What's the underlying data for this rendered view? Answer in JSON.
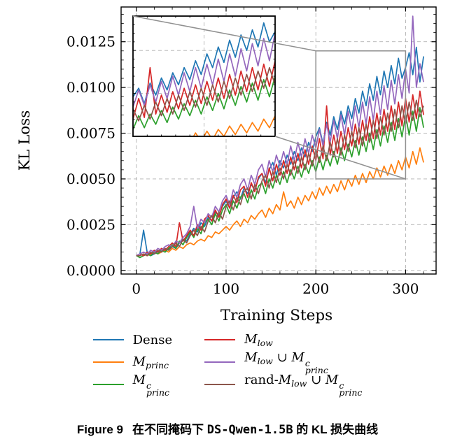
{
  "colors": {
    "background": "#ffffff",
    "axis": "#000000",
    "grid": "#b0b0b0",
    "zoom_indicator": "#909090"
  },
  "chart_data": {
    "type": "line",
    "title": "",
    "xlabel": "Training Steps",
    "ylabel": "KL Loss",
    "xlim": [
      -17,
      334
    ],
    "ylim": [
      -0.0002,
      0.0144
    ],
    "xticks": [
      0,
      100,
      200,
      300
    ],
    "xtick_labels": [
      "0",
      "100",
      "200",
      "300"
    ],
    "yticks": [
      0.0,
      0.0025,
      0.005,
      0.0075,
      0.01,
      0.0125
    ],
    "ytick_labels": [
      "0.0000",
      "0.0025",
      "0.0050",
      "0.0075",
      "0.0100",
      "0.0125"
    ],
    "x_minor_step": 20,
    "y_minor_step": 0.0005,
    "grid": true,
    "legend_position": "below, 2 columns",
    "y_scale": 0.0001,
    "x": [
      0,
      4,
      8,
      12,
      16,
      20,
      24,
      28,
      32,
      36,
      40,
      44,
      48,
      52,
      56,
      60,
      64,
      68,
      72,
      76,
      80,
      84,
      88,
      92,
      96,
      100,
      104,
      108,
      112,
      116,
      120,
      124,
      128,
      132,
      136,
      140,
      144,
      148,
      152,
      156,
      160,
      164,
      168,
      172,
      176,
      180,
      184,
      188,
      192,
      196,
      200,
      204,
      208,
      212,
      216,
      220,
      224,
      228,
      232,
      236,
      240,
      244,
      248,
      252,
      256,
      260,
      264,
      268,
      272,
      276,
      280,
      284,
      288,
      292,
      296,
      300,
      304,
      308,
      312,
      316,
      320
    ],
    "series": [
      {
        "name": "Dense",
        "color": "#1f77b4",
        "values_1e4": [
          8,
          9,
          22,
          10,
          8,
          9,
          10,
          11,
          10,
          12,
          13,
          12,
          15,
          17,
          16,
          20,
          23,
          21,
          26,
          24,
          29,
          27,
          32,
          30,
          35,
          38,
          34,
          40,
          43,
          39,
          45,
          42,
          47,
          44,
          50,
          53,
          48,
          55,
          59,
          52,
          60,
          56,
          63,
          58,
          65,
          60,
          67,
          62,
          70,
          65,
          73,
          78,
          69,
          81,
          74,
          84,
          77,
          87,
          80,
          90,
          83,
          94,
          86,
          98,
          90,
          102,
          93,
          106,
          96,
          109,
          100,
          112,
          102,
          116,
          105,
          111,
          119,
          107,
          122,
          103,
          117
        ]
      },
      {
        "name": "M_princ",
        "color": "#ff7f0e",
        "values_1e4": [
          8,
          8,
          9,
          8,
          9,
          10,
          9,
          10,
          11,
          10,
          12,
          11,
          13,
          12,
          14,
          15,
          14,
          16,
          17,
          16,
          19,
          18,
          21,
          20,
          22,
          24,
          22,
          25,
          27,
          24,
          28,
          26,
          30,
          28,
          31,
          33,
          29,
          34,
          31,
          36,
          33,
          43,
          35,
          38,
          34,
          40,
          36,
          41,
          38,
          43,
          39,
          45,
          41,
          46,
          42,
          47,
          43,
          49,
          44,
          50,
          46,
          52,
          47,
          53,
          48,
          54,
          50,
          56,
          51,
          57,
          52,
          58,
          53,
          60,
          55,
          62,
          56,
          65,
          58,
          67,
          59
        ]
      },
      {
        "name": "M^c_princ",
        "color": "#2ca02c",
        "values_1e4": [
          8,
          7,
          8,
          9,
          8,
          10,
          9,
          11,
          10,
          12,
          14,
          12,
          16,
          14,
          18,
          21,
          18,
          23,
          20,
          26,
          28,
          25,
          31,
          27,
          33,
          36,
          31,
          38,
          34,
          40,
          42,
          37,
          44,
          39,
          46,
          48,
          42,
          50,
          45,
          52,
          47,
          54,
          48,
          55,
          50,
          57,
          51,
          58,
          53,
          60,
          54,
          62,
          55,
          63,
          57,
          65,
          58,
          67,
          60,
          69,
          62,
          71,
          63,
          73,
          65,
          75,
          66,
          77,
          68,
          79,
          70,
          81,
          71,
          83,
          73,
          85,
          74,
          87,
          76,
          89,
          78
        ]
      },
      {
        "name": "M_low",
        "color": "#d62728",
        "values_1e4": [
          8,
          9,
          8,
          10,
          9,
          11,
          10,
          12,
          11,
          13,
          15,
          13,
          26,
          16,
          19,
          22,
          19,
          25,
          22,
          28,
          30,
          27,
          33,
          29,
          36,
          39,
          34,
          41,
          37,
          44,
          46,
          40,
          48,
          43,
          51,
          53,
          46,
          56,
          49,
          58,
          52,
          60,
          53,
          62,
          55,
          64,
          56,
          66,
          58,
          68,
          60,
          72,
          61,
          90,
          63,
          74,
          64,
          76,
          66,
          78,
          68,
          80,
          69,
          82,
          71,
          84,
          72,
          86,
          74,
          88,
          76,
          90,
          77,
          92,
          79,
          94,
          81,
          96,
          83,
          98,
          85
        ]
      },
      {
        "name": "M_low ∪ M^c_princ",
        "color": "#9467bd",
        "values_1e4": [
          8,
          9,
          10,
          9,
          11,
          10,
          12,
          11,
          13,
          14,
          13,
          16,
          15,
          18,
          20,
          24,
          35,
          23,
          28,
          26,
          31,
          29,
          35,
          32,
          38,
          41,
          36,
          44,
          40,
          47,
          50,
          44,
          52,
          47,
          55,
          58,
          51,
          60,
          54,
          63,
          57,
          65,
          58,
          68,
          60,
          70,
          62,
          72,
          64,
          74,
          67,
          77,
          68,
          80,
          70,
          82,
          72,
          85,
          74,
          87,
          76,
          90,
          78,
          92,
          80,
          95,
          82,
          98,
          85,
          101,
          88,
          104,
          91,
          107,
          94,
          110,
          97,
          139,
          100,
          113,
          103
        ]
      },
      {
        "name": "rand-M_low ∪ M^c_princ",
        "color": "#8c564b",
        "values_1e4": [
          8,
          8,
          9,
          8,
          10,
          9,
          11,
          10,
          12,
          11,
          13,
          15,
          13,
          17,
          15,
          19,
          22,
          19,
          24,
          21,
          27,
          30,
          26,
          32,
          28,
          35,
          38,
          33,
          40,
          36,
          43,
          45,
          39,
          47,
          42,
          49,
          52,
          45,
          54,
          48,
          56,
          50,
          58,
          52,
          60,
          53,
          62,
          55,
          64,
          57,
          66,
          59,
          68,
          60,
          70,
          62,
          72,
          63,
          74,
          65,
          76,
          67,
          78,
          68,
          80,
          70,
          82,
          72,
          84,
          74,
          86,
          76,
          88,
          78,
          90,
          80,
          92,
          82,
          93,
          84,
          90
        ]
      }
    ],
    "inset": {
      "x_range": [
        200,
        300
      ],
      "y_range": [
        0.005,
        0.012
      ],
      "grid_x": [
        250
      ],
      "grid_y": [
        0.0075,
        0.01
      ]
    },
    "zoom_rect": {
      "x_range": [
        200,
        300
      ],
      "y_range": [
        0.005,
        0.012
      ],
      "color": "#909090"
    }
  },
  "legend": {
    "items": [
      {
        "name": "dense",
        "color": "#1f77b4",
        "label_text": "Dense",
        "segments": [
          {
            "text": "Dense",
            "style": "roman"
          }
        ]
      },
      {
        "name": "m-princ",
        "color": "#ff7f0e",
        "label_text": "M_princ",
        "segments": [
          {
            "text": "M",
            "style": "italic"
          },
          {
            "text": "princ",
            "style": "sub"
          }
        ]
      },
      {
        "name": "m-princ-c",
        "color": "#2ca02c",
        "label_text": "M^c_princ",
        "segments": [
          {
            "text": "M",
            "style": "italic"
          },
          {
            "sup": "c",
            "sub": "princ",
            "style": "supsub"
          }
        ]
      },
      {
        "name": "m-low",
        "color": "#d62728",
        "label_text": "M_low",
        "segments": [
          {
            "text": "M",
            "style": "italic"
          },
          {
            "text": "low",
            "style": "sub"
          }
        ]
      },
      {
        "name": "m-low-union-m-princ-c",
        "color": "#9467bd",
        "label_text": "M_low ∪ M^c_princ",
        "segments": [
          {
            "text": "M",
            "style": "italic"
          },
          {
            "text": "low",
            "style": "sub"
          },
          {
            "text": " ∪ ",
            "style": "roman"
          },
          {
            "text": "M",
            "style": "italic"
          },
          {
            "sup": "c",
            "sub": "princ",
            "style": "supsub"
          }
        ]
      },
      {
        "name": "rand-m-low-union-m-princ-c",
        "color": "#8c564b",
        "label_text": "rand-M_low ∪ M^c_princ",
        "segments": [
          {
            "text": "rand-",
            "style": "roman"
          },
          {
            "text": "M",
            "style": "italic"
          },
          {
            "text": "low",
            "style": "sub"
          },
          {
            "text": " ∪ ",
            "style": "roman"
          },
          {
            "text": "M",
            "style": "italic"
          },
          {
            "sup": "c",
            "sub": "princ",
            "style": "supsub"
          }
        ]
      }
    ]
  },
  "caption": {
    "figure_label": "Figure 9",
    "text_before_model": "在不同掩码下",
    "model_name": "DS-Qwen-1.5B",
    "text_after_model": "的 KL 损失曲线"
  }
}
